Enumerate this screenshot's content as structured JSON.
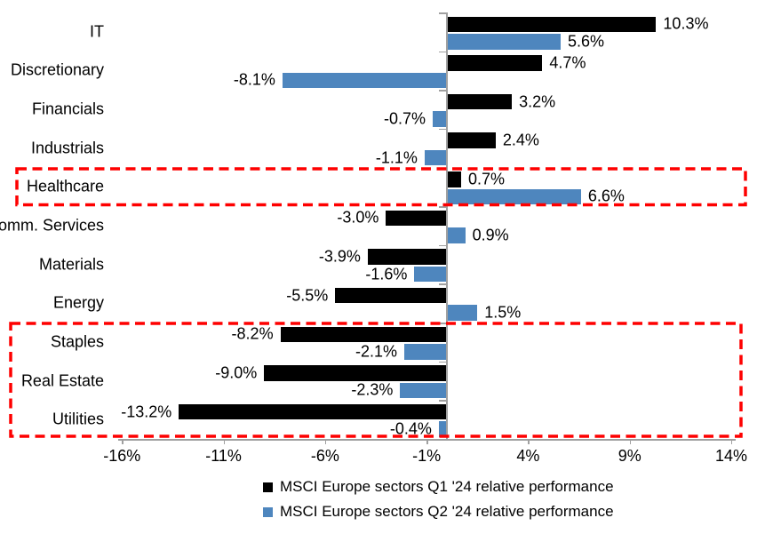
{
  "chart_data": {
    "type": "bar",
    "orientation": "horizontal",
    "title": "",
    "categories": [
      "IT",
      "Discretionary",
      "Financials",
      "Industrials",
      "Healthcare",
      "Comm. Services",
      "Materials",
      "Energy",
      "Staples",
      "Real Estate",
      "Utilities"
    ],
    "series": [
      {
        "name": "MSCI Europe sectors Q1 '24 relative performance",
        "color": "#000000",
        "values": [
          10.3,
          4.7,
          3.2,
          2.4,
          0.7,
          -3.0,
          -3.9,
          -5.5,
          -8.2,
          -9.0,
          -13.2
        ],
        "labels": [
          "10.3%",
          "4.7%",
          "3.2%",
          "2.4%",
          "0.7%",
          "-3.0%",
          "-3.9%",
          "-5.5%",
          "-8.2%",
          "-9.0%",
          "-13.2%"
        ]
      },
      {
        "name": "MSCI Europe sectors Q2 '24 relative performance",
        "color": "#4E86BE",
        "values": [
          5.6,
          -8.1,
          -0.7,
          -1.1,
          6.6,
          0.9,
          -1.6,
          1.5,
          -2.1,
          -2.3,
          -0.4
        ],
        "labels": [
          "5.6%",
          "-8.1%",
          "-0.7%",
          "-1.1%",
          "6.6%",
          "0.9%",
          "-1.6%",
          "1.5%",
          "-2.1%",
          "-2.3%",
          "-0.4%"
        ]
      }
    ],
    "x_ticks": [
      {
        "value": -16,
        "label": "-16%"
      },
      {
        "value": -11,
        "label": "-11%"
      },
      {
        "value": -6,
        "label": "-6%"
      },
      {
        "value": -1,
        "label": "-1%"
      },
      {
        "value": 4,
        "label": "4%"
      },
      {
        "value": 9,
        "label": "9%"
      },
      {
        "value": 14,
        "label": "14%"
      }
    ],
    "xlim": [
      -16.2,
      14.2
    ],
    "grid": false,
    "legend_position": "bottom",
    "axis_color": "#A0A0A0",
    "highlight_color": "#FE0000",
    "highlights": [
      {
        "sectors": [
          "Healthcare"
        ]
      },
      {
        "sectors": [
          "Staples",
          "Real Estate",
          "Utilities"
        ]
      }
    ]
  }
}
